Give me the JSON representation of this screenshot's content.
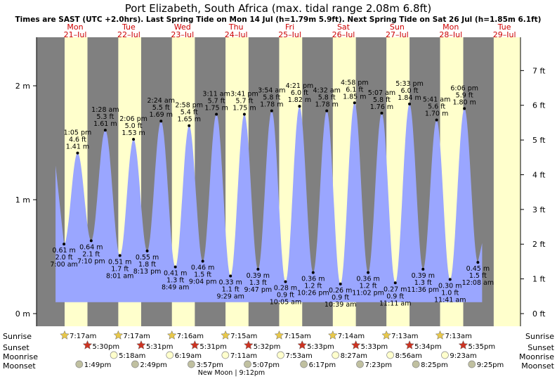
{
  "title": "Port Elizabeth, South Africa (max. tidal range 2.08m 6.8ft)",
  "subtitle": "Times are SAST (UTC +2.0hrs). Last Spring Tide on Mon 14 Jul (h=1.79m 5.9ft). Next Spring Tide on Sat 26 Jul (h=1.85m 6.1ft)",
  "colors": {
    "night": "#808080",
    "day": "#ffffcc",
    "tide": "#9aa6ff",
    "date_text": "#cc0000",
    "sunrise_star": "#e8c84a",
    "sunset_star": "#cc3322",
    "moonrise": "#ffffcc",
    "moonset": "#c0c0a0"
  },
  "chart_data": {
    "type": "area",
    "x_unit": "date/time SAST",
    "y_left_unit": "m",
    "y_right_unit": "ft",
    "ylim_m": [
      0,
      2.5
    ],
    "left_axis_ticks": [
      {
        "v": 0,
        "label": "0 m"
      },
      {
        "v": 1,
        "label": "1 m"
      },
      {
        "v": 2,
        "label": "2 m"
      }
    ],
    "right_axis_ticks": [
      {
        "v": 0,
        "label": "0 ft"
      },
      {
        "v": 1,
        "label": "1 ft"
      },
      {
        "v": 2,
        "label": "2 ft"
      },
      {
        "v": 3,
        "label": "3 ft"
      },
      {
        "v": 4,
        "label": "4 ft"
      },
      {
        "v": 5,
        "label": "5 ft"
      },
      {
        "v": 6,
        "label": "6 ft"
      },
      {
        "v": 7,
        "label": "7 ft"
      }
    ],
    "days": [
      {
        "day": "Mon",
        "date": "21–Jul"
      },
      {
        "day": "Tue",
        "date": "22–Jul"
      },
      {
        "day": "Wed",
        "date": "23–Jul"
      },
      {
        "day": "Thu",
        "date": "24–Jul"
      },
      {
        "day": "Fri",
        "date": "25–Jul"
      },
      {
        "day": "Sat",
        "date": "26–Jul"
      },
      {
        "day": "Sun",
        "date": "27–Jul"
      },
      {
        "day": "Mon",
        "date": "28–Jul"
      },
      {
        "day": "Tue",
        "date": "29–Jul"
      }
    ],
    "tides": [
      {
        "t": "2025-07-21 07:00",
        "type": "low",
        "time": "7:00 am",
        "ft": "2.0 ft",
        "m": 0.61,
        "m_label": "0.61 m"
      },
      {
        "t": "2025-07-21 13:05",
        "type": "high",
        "time": "1:05 pm",
        "ft": "4.6 ft",
        "m": 1.41,
        "m_label": "1.41 m"
      },
      {
        "t": "2025-07-21 19:10",
        "type": "low",
        "time": "7:10 pm",
        "ft": "2.1 ft",
        "m": 0.64,
        "m_label": "0.64 m"
      },
      {
        "t": "2025-07-22 01:28",
        "type": "high",
        "time": "1:28 am",
        "ft": "5.3 ft",
        "m": 1.61,
        "m_label": "1.61 m"
      },
      {
        "t": "2025-07-22 08:01",
        "type": "low",
        "time": "8:01 am",
        "ft": "1.7 ft",
        "m": 0.51,
        "m_label": "0.51 m"
      },
      {
        "t": "2025-07-22 14:06",
        "type": "high",
        "time": "2:06 pm",
        "ft": "5.0 ft",
        "m": 1.53,
        "m_label": "1.53 m"
      },
      {
        "t": "2025-07-22 20:13",
        "type": "low",
        "time": "8:13 pm",
        "ft": "1.8 ft",
        "m": 0.55,
        "m_label": "0.55 m"
      },
      {
        "t": "2025-07-23 02:24",
        "type": "high",
        "time": "2:24 am",
        "ft": "5.5 ft",
        "m": 1.69,
        "m_label": "1.69 m"
      },
      {
        "t": "2025-07-23 08:49",
        "type": "low",
        "time": "8:49 am",
        "ft": "1.3 ft",
        "m": 0.41,
        "m_label": "0.41 m"
      },
      {
        "t": "2025-07-23 14:58",
        "type": "high",
        "time": "2:58 pm",
        "ft": "5.4 ft",
        "m": 1.65,
        "m_label": "1.65 m"
      },
      {
        "t": "2025-07-23 21:04",
        "type": "low",
        "time": "9:04 pm",
        "ft": "1.5 ft",
        "m": 0.46,
        "m_label": "0.46 m"
      },
      {
        "t": "2025-07-24 03:11",
        "type": "high",
        "time": "3:11 am",
        "ft": "5.7 ft",
        "m": 1.75,
        "m_label": "1.75 m"
      },
      {
        "t": "2025-07-24 09:29",
        "type": "low",
        "time": "9:29 am",
        "ft": "1.1 ft",
        "m": 0.33,
        "m_label": "0.33 m"
      },
      {
        "t": "2025-07-24 15:41",
        "type": "high",
        "time": "3:41 pm",
        "ft": "5.7 ft",
        "m": 1.75,
        "m_label": "1.75 m"
      },
      {
        "t": "2025-07-24 21:47",
        "type": "low",
        "time": "9:47 pm",
        "ft": "1.3 ft",
        "m": 0.39,
        "m_label": "0.39 m"
      },
      {
        "t": "2025-07-25 03:54",
        "type": "high",
        "time": "3:54 am",
        "ft": "5.8 ft",
        "m": 1.78,
        "m_label": "1.78 m"
      },
      {
        "t": "2025-07-25 10:05",
        "type": "low",
        "time": "10:05 am",
        "ft": "0.9 ft",
        "m": 0.28,
        "m_label": "0.28 m"
      },
      {
        "t": "2025-07-25 16:21",
        "type": "high",
        "time": "4:21 pm",
        "ft": "6.0 ft",
        "m": 1.82,
        "m_label": "1.82 m"
      },
      {
        "t": "2025-07-25 22:26",
        "type": "low",
        "time": "10:26 pm",
        "ft": "1.2 ft",
        "m": 0.36,
        "m_label": "0.36 m"
      },
      {
        "t": "2025-07-26 04:32",
        "type": "high",
        "time": "4:32 am",
        "ft": "5.8 ft",
        "m": 1.78,
        "m_label": "1.78 m"
      },
      {
        "t": "2025-07-26 10:39",
        "type": "low",
        "time": "10:39 am",
        "ft": "0.9 ft",
        "m": 0.26,
        "m_label": "0.26 m"
      },
      {
        "t": "2025-07-26 16:58",
        "type": "high",
        "time": "4:58 pm",
        "ft": "6.1 ft",
        "m": 1.85,
        "m_label": "1.85 m"
      },
      {
        "t": "2025-07-26 23:02",
        "type": "low",
        "time": "11:02 pm",
        "ft": "1.2 ft",
        "m": 0.36,
        "m_label": "0.36 m"
      },
      {
        "t": "2025-07-27 05:07",
        "type": "high",
        "time": "5:07 am",
        "ft": "5.8 ft",
        "m": 1.76,
        "m_label": "1.76 m"
      },
      {
        "t": "2025-07-27 11:11",
        "type": "low",
        "time": "11:11 am",
        "ft": "0.9 ft",
        "m": 0.27,
        "m_label": "0.27 m"
      },
      {
        "t": "2025-07-27 17:33",
        "type": "high",
        "time": "5:33 pm",
        "ft": "6.0 ft",
        "m": 1.84,
        "m_label": "1.84 m"
      },
      {
        "t": "2025-07-27 23:36",
        "type": "low",
        "time": "11:36 pm",
        "ft": "1.3 ft",
        "m": 0.39,
        "m_label": "0.39 m"
      },
      {
        "t": "2025-07-28 05:41",
        "type": "high",
        "time": "5:41 am",
        "ft": "5.6 ft",
        "m": 1.7,
        "m_label": "1.70 m"
      },
      {
        "t": "2025-07-28 11:41",
        "type": "low",
        "time": "11:41 am",
        "ft": "1.0 ft",
        "m": 0.3,
        "m_label": "0.30 m"
      },
      {
        "t": "2025-07-28 18:06",
        "type": "high",
        "time": "6:06 pm",
        "ft": "5.9 ft",
        "m": 1.8,
        "m_label": "1.80 m"
      },
      {
        "t": "2025-07-29 00:08",
        "type": "low",
        "time": "12:08 am",
        "ft": "1.5 ft",
        "m": 0.45,
        "m_label": "0.45 m"
      }
    ],
    "sun": [
      {
        "rise": "2025-07-21 07:17",
        "rise_label": "7:17am",
        "set": "2025-07-21 17:30",
        "set_label": "5:30pm"
      },
      {
        "rise": "2025-07-22 07:17",
        "rise_label": "7:17am",
        "set": "2025-07-22 17:31",
        "set_label": "5:31pm"
      },
      {
        "rise": "2025-07-23 07:16",
        "rise_label": "7:16am",
        "set": "2025-07-23 17:31",
        "set_label": "5:31pm"
      },
      {
        "rise": "2025-07-24 07:15",
        "rise_label": "7:15am",
        "set": "2025-07-24 17:32",
        "set_label": "5:32pm"
      },
      {
        "rise": "2025-07-25 07:15",
        "rise_label": "7:15am",
        "set": "2025-07-25 17:33",
        "set_label": "5:33pm"
      },
      {
        "rise": "2025-07-26 07:14",
        "rise_label": "7:14am",
        "set": "2025-07-26 17:33",
        "set_label": "5:33pm"
      },
      {
        "rise": "2025-07-27 07:13",
        "rise_label": "7:13am",
        "set": "2025-07-27 17:34",
        "set_label": "5:34pm"
      },
      {
        "rise": "2025-07-28 07:13",
        "rise_label": "7:13am",
        "set": "2025-07-28 17:35",
        "set_label": "5:35pm"
      }
    ],
    "moonrise": [
      {
        "t": "2025-07-22 05:18",
        "label": "5:18am"
      },
      {
        "t": "2025-07-23 06:19",
        "label": "6:19am"
      },
      {
        "t": "2025-07-24 07:11",
        "label": "7:11am"
      },
      {
        "t": "2025-07-25 07:53",
        "label": "7:53am"
      },
      {
        "t": "2025-07-26 08:27",
        "label": "8:27am"
      },
      {
        "t": "2025-07-27 08:56",
        "label": "8:56am"
      },
      {
        "t": "2025-07-28 09:23",
        "label": "9:23am"
      }
    ],
    "moonset": [
      {
        "t": "2025-07-21 13:49",
        "label": "1:49pm"
      },
      {
        "t": "2025-07-22 14:49",
        "label": "2:49pm"
      },
      {
        "t": "2025-07-23 15:57",
        "label": "3:57pm"
      },
      {
        "t": "2025-07-24 17:07",
        "label": "5:07pm"
      },
      {
        "t": "2025-07-25 18:17",
        "label": "6:17pm"
      },
      {
        "t": "2025-07-26 19:23",
        "label": "7:23pm"
      },
      {
        "t": "2025-07-27 20:25",
        "label": "8:25pm"
      },
      {
        "t": "2025-07-28 21:25",
        "label": "9:25pm"
      }
    ],
    "moon_phase": {
      "t": "2025-07-24 21:12",
      "label": "New Moon | 9:12pm"
    },
    "row_labels": {
      "sunrise": "Sunrise",
      "sunset": "Sunset",
      "moonrise": "Moonrise",
      "moonset": "Moonset"
    }
  }
}
